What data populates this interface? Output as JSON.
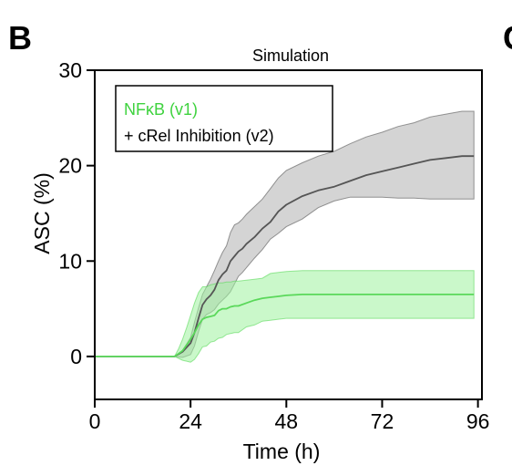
{
  "panel": {
    "label": "B",
    "next_label_fragment": "C"
  },
  "chart_data": {
    "type": "line",
    "title": "Simulation",
    "xlabel": "Time (h)",
    "ylabel": "ASC (%)",
    "xlim": [
      0,
      97
    ],
    "ylim": [
      -4.5,
      30
    ],
    "xticks": [
      0,
      24,
      48,
      72,
      96
    ],
    "yticks": [
      0,
      10,
      20,
      30
    ],
    "grid": false,
    "legend_position": "top-left",
    "series": [
      {
        "name": "NFκB (v1)",
        "color": "#5ad85a",
        "fill_color": "#9ef29e",
        "x": [
          0,
          20,
          21,
          22,
          23,
          24,
          25,
          26,
          27,
          28,
          29,
          30,
          31,
          32,
          33,
          34,
          35,
          36,
          38,
          40,
          42,
          44,
          46,
          48,
          52,
          56,
          60,
          64,
          68,
          72,
          76,
          80,
          84,
          88,
          92,
          95
        ],
        "y": [
          0,
          0,
          0.3,
          0.6,
          1.2,
          1.8,
          2.5,
          3.3,
          3.9,
          4.1,
          4.2,
          4.3,
          4.8,
          5.0,
          5.0,
          5.2,
          5.3,
          5.3,
          5.6,
          5.9,
          6.1,
          6.2,
          6.3,
          6.4,
          6.5,
          6.5,
          6.5,
          6.5,
          6.5,
          6.5,
          6.5,
          6.5,
          6.5,
          6.5,
          6.5,
          6.5
        ],
        "lower": [
          0,
          0,
          -0.2,
          -0.4,
          -0.5,
          -0.6,
          -0.3,
          0.3,
          1.0,
          1.1,
          1.5,
          1.6,
          1.9,
          2.0,
          2.3,
          2.4,
          2.5,
          2.5,
          3.1,
          3.3,
          3.7,
          3.8,
          3.9,
          4.0,
          4.0,
          4.0,
          4.0,
          4.0,
          4.0,
          4.0,
          4.0,
          4.0,
          4.0,
          4.0,
          4.0,
          4.0
        ],
        "upper": [
          0,
          0,
          0.8,
          1.8,
          3.0,
          4.3,
          5.6,
          6.7,
          7.3,
          7.3,
          7.5,
          7.6,
          7.7,
          7.7,
          7.8,
          7.8,
          7.9,
          7.9,
          8.0,
          8.1,
          8.2,
          8.7,
          8.8,
          8.9,
          9.0,
          9.0,
          9.0,
          9.0,
          9.0,
          9.0,
          9.0,
          9.0,
          9.0,
          9.0,
          9.0,
          9.0
        ]
      },
      {
        "name": "+ cRel Inhibition (v2)",
        "color": "#555555",
        "fill_color": "#bdbdbd",
        "x": [
          0,
          20,
          22,
          24,
          25,
          26,
          27,
          28,
          29,
          30,
          31,
          32,
          33,
          34,
          35,
          36,
          37,
          38,
          40,
          42,
          44,
          46,
          48,
          52,
          56,
          60,
          64,
          68,
          72,
          76,
          80,
          84,
          88,
          92,
          95
        ],
        "y": [
          0,
          0,
          0.5,
          1.4,
          2.5,
          4.0,
          5.4,
          6.0,
          6.4,
          7.0,
          8.0,
          8.6,
          9.0,
          10.0,
          10.5,
          11.0,
          11.3,
          11.8,
          12.5,
          13.4,
          14.1,
          15.2,
          15.9,
          16.8,
          17.4,
          17.8,
          18.4,
          19.0,
          19.4,
          19.8,
          20.2,
          20.6,
          20.8,
          21.0,
          21.0
        ],
        "lower": [
          0,
          0,
          -0.1,
          0.2,
          1.1,
          2.6,
          3.9,
          4.4,
          4.6,
          4.9,
          5.5,
          5.9,
          6.3,
          6.8,
          7.6,
          8.4,
          8.8,
          9.3,
          10.3,
          11.2,
          12.3,
          12.9,
          13.6,
          14.4,
          15.6,
          16.3,
          16.7,
          16.7,
          16.7,
          16.6,
          16.6,
          16.5,
          16.5,
          16.5,
          16.5
        ],
        "upper": [
          0,
          0,
          0.6,
          2.0,
          3.6,
          5.1,
          6.5,
          7.3,
          8.1,
          9.0,
          10.0,
          10.9,
          11.6,
          13.0,
          13.8,
          14.0,
          14.4,
          14.9,
          15.7,
          16.5,
          17.6,
          18.7,
          19.5,
          20.3,
          21.0,
          21.5,
          22.3,
          23.0,
          23.5,
          24.1,
          24.5,
          25.1,
          25.4,
          25.7,
          25.7
        ]
      }
    ]
  }
}
